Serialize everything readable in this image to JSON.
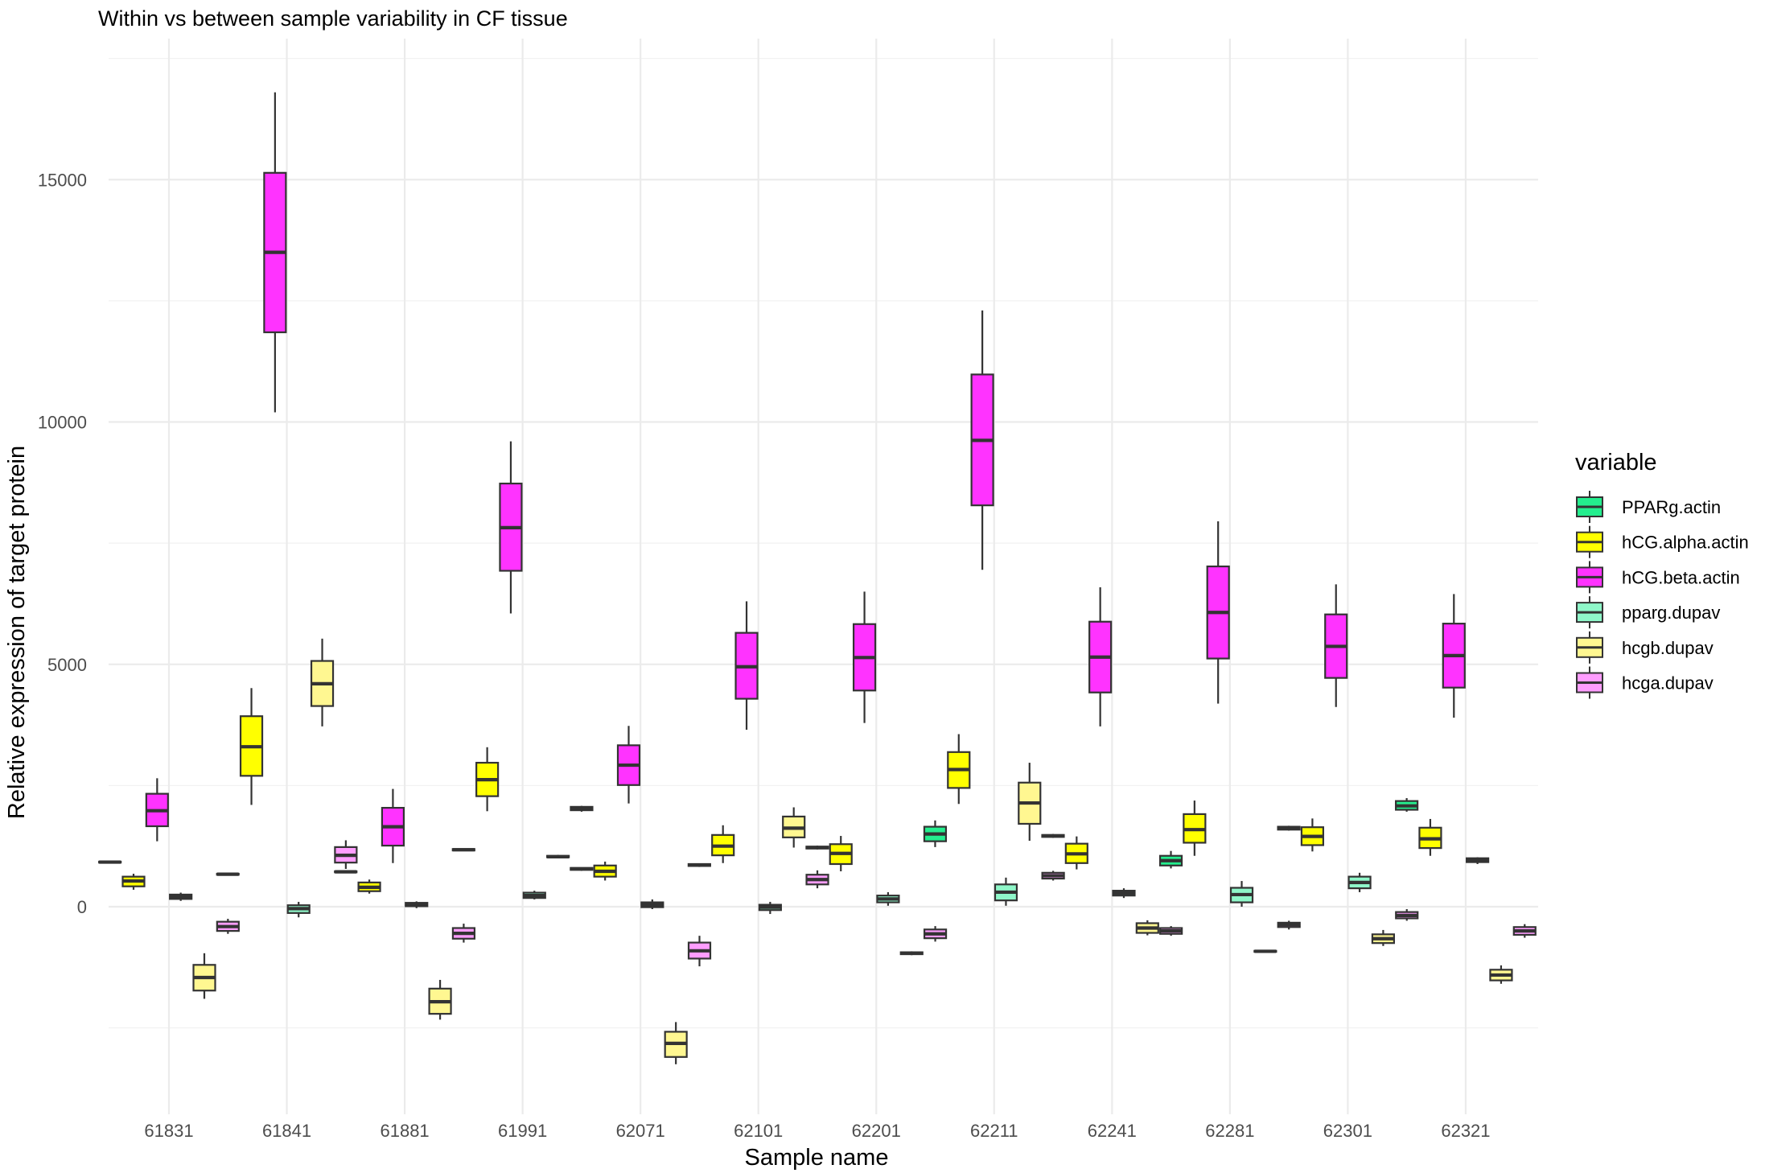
{
  "chart_data": {
    "type": "boxplot",
    "title": "Within vs between sample variability in CF tissue",
    "xlabel": "Sample name",
    "ylabel": "Relative expression of target protein",
    "categories": [
      "61831",
      "61841",
      "61881",
      "61991",
      "62071",
      "62101",
      "62201",
      "62211",
      "62241",
      "62281",
      "62301",
      "62321"
    ],
    "ylim": [
      -4300,
      17800
    ],
    "yticks": [
      0,
      5000,
      10000,
      15000
    ],
    "ytick_labels": [
      "0",
      "5000",
      "10000",
      "15000"
    ],
    "grid": true,
    "legend": {
      "title": "variable",
      "position": "right"
    },
    "series": [
      {
        "name": "PPARg.actin",
        "color": "#24ee8e",
        "boxes": [
          [
            910,
            910,
            920,
            930,
            940
          ],
          [
            650,
            660,
            670,
            680,
            690
          ],
          [
            700,
            710,
            720,
            730,
            740
          ],
          [
            1150,
            1160,
            1175,
            1190,
            1200
          ],
          [
            740,
            760,
            780,
            800,
            810
          ],
          [
            820,
            840,
            860,
            880,
            890
          ],
          [
            1180,
            1200,
            1220,
            1240,
            1260
          ],
          [
            1230,
            1350,
            1500,
            1650,
            1780
          ],
          [
            1420,
            1440,
            1460,
            1480,
            1500
          ],
          [
            790,
            850,
            950,
            1050,
            1150
          ],
          [
            1570,
            1590,
            1620,
            1650,
            1670
          ],
          [
            1960,
            2000,
            2080,
            2180,
            2240
          ]
        ]
      },
      {
        "name": "hCG.alpha.actin",
        "color": "#ffff00",
        "boxes": [
          [
            350,
            420,
            530,
            620,
            680
          ],
          [
            2100,
            2700,
            3300,
            3930,
            4510
          ],
          [
            270,
            320,
            400,
            500,
            560
          ],
          [
            1970,
            2280,
            2620,
            2970,
            3290
          ],
          [
            540,
            620,
            730,
            850,
            930
          ],
          [
            900,
            1060,
            1250,
            1480,
            1680
          ],
          [
            730,
            880,
            1100,
            1290,
            1460
          ],
          [
            2120,
            2450,
            2830,
            3190,
            3560
          ],
          [
            770,
            900,
            1090,
            1300,
            1450
          ],
          [
            1050,
            1320,
            1590,
            1910,
            2190
          ],
          [
            1140,
            1270,
            1450,
            1640,
            1820
          ],
          [
            1050,
            1210,
            1400,
            1630,
            1810
          ]
        ]
      },
      {
        "name": "hCG.beta.actin",
        "color": "#ff33ff",
        "boxes": [
          [
            1350,
            1660,
            1980,
            2330,
            2650
          ],
          [
            10200,
            11850,
            13500,
            15140,
            16800
          ],
          [
            900,
            1260,
            1650,
            2040,
            2430
          ],
          [
            6050,
            6930,
            7820,
            8730,
            9600
          ],
          [
            2130,
            2510,
            2920,
            3330,
            3730
          ],
          [
            3650,
            4290,
            4950,
            5650,
            6300
          ],
          [
            3790,
            4460,
            5140,
            5830,
            6500
          ],
          [
            6950,
            8280,
            9620,
            10980,
            12300
          ],
          [
            3720,
            4420,
            5150,
            5880,
            6590
          ],
          [
            4190,
            5120,
            6070,
            7020,
            7950
          ],
          [
            4120,
            4720,
            5370,
            6030,
            6650
          ],
          [
            3900,
            4520,
            5180,
            5840,
            6450
          ]
        ]
      },
      {
        "name": "pparg.dupav",
        "color": "#8ff7c9",
        "boxes": [
          [
            120,
            160,
            210,
            250,
            290
          ],
          [
            -220,
            -130,
            -40,
            30,
            100
          ],
          [
            -30,
            10,
            50,
            80,
            110
          ],
          [
            150,
            180,
            230,
            290,
            330
          ],
          [
            -50,
            -10,
            40,
            90,
            150
          ],
          [
            -150,
            -70,
            -10,
            40,
            100
          ],
          [
            20,
            90,
            160,
            230,
            300
          ],
          [
            20,
            130,
            300,
            460,
            600
          ],
          [
            180,
            230,
            280,
            330,
            380
          ],
          [
            0,
            90,
            250,
            390,
            530
          ],
          [
            300,
            380,
            500,
            620,
            700
          ],
          [
            880,
            920,
            960,
            1000,
            1020
          ]
        ]
      },
      {
        "name": "hcgb.dupav",
        "color": "#fff791",
        "boxes": [
          [
            -1900,
            -1730,
            -1460,
            -1200,
            -960
          ],
          [
            3720,
            4140,
            4600,
            5070,
            5530
          ],
          [
            -2330,
            -2210,
            -1960,
            -1690,
            -1510
          ],
          [
            1000,
            1020,
            1030,
            1050,
            1070
          ],
          [
            -3250,
            -3100,
            -2820,
            -2580,
            -2380
          ],
          [
            1220,
            1430,
            1620,
            1860,
            2050
          ],
          [
            -1000,
            -980,
            -960,
            -940,
            -920
          ],
          [
            1360,
            1710,
            2140,
            2560,
            2970
          ],
          [
            -590,
            -540,
            -440,
            -340,
            -280
          ],
          [
            -940,
            -930,
            -920,
            -910,
            -900
          ],
          [
            -810,
            -750,
            -660,
            -570,
            -480
          ],
          [
            -1590,
            -1520,
            -1410,
            -1300,
            -1210
          ]
        ]
      },
      {
        "name": "hcga.dupav",
        "color": "#ff9dff",
        "boxes": [
          [
            -560,
            -500,
            -410,
            -310,
            -250
          ],
          [
            780,
            910,
            1060,
            1230,
            1370
          ],
          [
            -740,
            -660,
            -550,
            -440,
            -350
          ],
          [
            1960,
            1990,
            2030,
            2060,
            2080
          ],
          [
            -1230,
            -1070,
            -910,
            -740,
            -600
          ],
          [
            380,
            460,
            560,
            660,
            750
          ],
          [
            -720,
            -650,
            -560,
            -470,
            -400
          ],
          [
            540,
            580,
            640,
            700,
            740
          ],
          [
            -600,
            -560,
            -500,
            -440,
            -400
          ],
          [
            -470,
            -420,
            -370,
            -330,
            -290
          ],
          [
            -290,
            -240,
            -180,
            -110,
            -50
          ],
          [
            -640,
            -580,
            -500,
            -420,
            -360
          ]
        ]
      }
    ]
  }
}
